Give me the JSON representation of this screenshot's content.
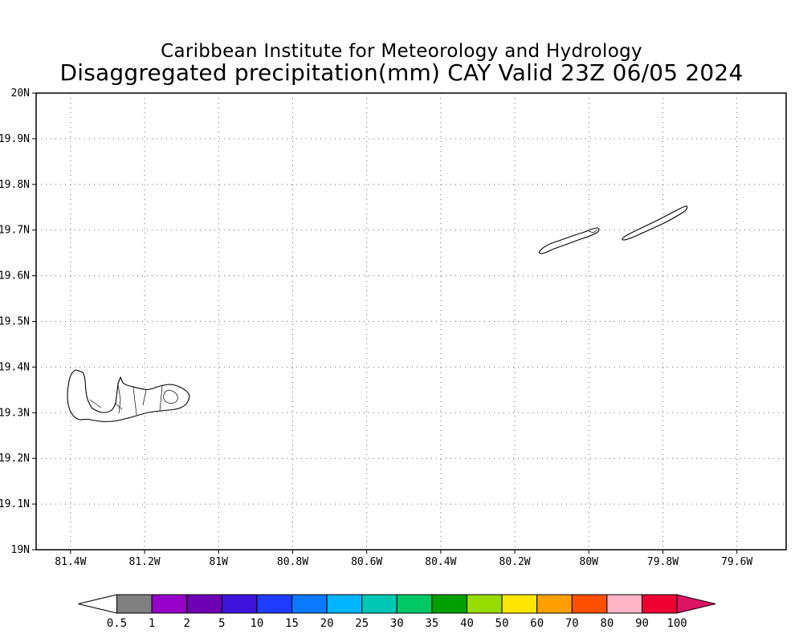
{
  "title_line1": "Caribbean Institute for Meteorology and Hydrology",
  "title_line2": "Disaggregated precipitation(mm) CAY Valid 23Z 06/05 2024",
  "chart_data": {
    "type": "map",
    "title": "Caribbean Institute for Meteorology and Hydrology",
    "subtitle": "Disaggregated precipitation(mm) CAY Valid 23Z 06/05 2024",
    "variable": "Disaggregated precipitation",
    "units": "mm",
    "region_code": "CAY",
    "valid_time": "23Z 06/05 2024",
    "grid": true,
    "precip_fill_visible": false,
    "xlim": [
      -81.493,
      -79.467
    ],
    "ylim": [
      19.0,
      20.0
    ],
    "x_ticks": {
      "values": [
        -81.4,
        -81.2,
        -81.0,
        -80.8,
        -80.6,
        -80.4,
        -80.2,
        -80.0,
        -79.8,
        -79.6
      ],
      "labels": [
        "81.4W",
        "81.2W",
        "81W",
        "80.8W",
        "80.6W",
        "80.4W",
        "80.2W",
        "80W",
        "79.8W",
        "79.6W"
      ]
    },
    "y_ticks": {
      "values": [
        19.0,
        19.1,
        19.2,
        19.3,
        19.4,
        19.5,
        19.6,
        19.7,
        19.8,
        19.9,
        20.0
      ],
      "labels": [
        "19N",
        "19.1N",
        "19.2N",
        "19.3N",
        "19.4N",
        "19.5N",
        "19.6N",
        "19.7N",
        "19.8N",
        "19.9N",
        "20N"
      ]
    },
    "colorbar": {
      "orientation": "horizontal",
      "labels": [
        "0.5",
        "1",
        "2",
        "5",
        "10",
        "15",
        "20",
        "25",
        "30",
        "35",
        "40",
        "50",
        "60",
        "70",
        "80",
        "90",
        "100"
      ],
      "segment_colors": [
        "#808080",
        "#9600c8",
        "#6e00b4",
        "#3c14dc",
        "#1e3cff",
        "#0a78ff",
        "#00b4ff",
        "#00c8b4",
        "#00c864",
        "#00a000",
        "#96dc00",
        "#ffe600",
        "#ffa000",
        "#ff5000",
        "#ffb4c8",
        "#f00032"
      ],
      "below_min_color": "#ffffff",
      "above_max_color": "#dc1464"
    }
  }
}
